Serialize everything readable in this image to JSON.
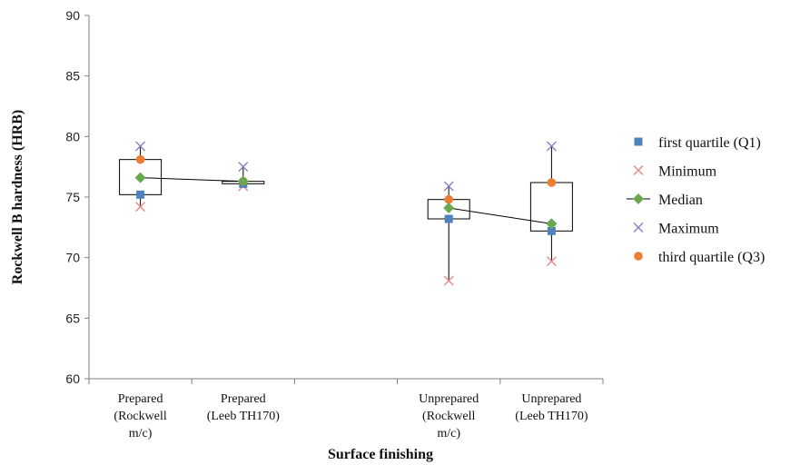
{
  "chart_data": {
    "type": "box",
    "xlabel": "Surface finishing",
    "ylabel": "Rockwell B hardness (HRB)",
    "ylim": [
      60,
      90
    ],
    "yticks": [
      60,
      65,
      70,
      75,
      80,
      85,
      90
    ],
    "grid": false,
    "legend_position": "right",
    "categories": [
      [
        "Prepared",
        "(Rockwell",
        "m/c)"
      ],
      [
        "Prepared",
        "(Leeb TH170)"
      ],
      [
        "Unprepared",
        "(Rockwell",
        "m/c)"
      ],
      [
        "Unprepared",
        "(Leeb TH170)"
      ]
    ],
    "category_positions": [
      0.5,
      1.5,
      3.5,
      4.5
    ],
    "x_range": [
      0,
      5
    ],
    "series": [
      {
        "name": "first quartile (Q1)",
        "marker": "square",
        "color": "#4f81bd",
        "values": [
          75.2,
          76.1,
          73.2,
          72.2
        ]
      },
      {
        "name": "Minimum",
        "marker": "x",
        "color": "#e88a86",
        "values": [
          74.2,
          75.9,
          68.1,
          69.7
        ]
      },
      {
        "name": "Median",
        "marker": "diamond",
        "color": "#6aa84f",
        "values": [
          76.6,
          76.3,
          74.1,
          72.8
        ]
      },
      {
        "name": "Maximum",
        "marker": "x",
        "color": "#8e7cc3",
        "values": [
          79.2,
          77.5,
          75.9,
          79.2
        ]
      },
      {
        "name": "third quartile (Q3)",
        "marker": "circle",
        "color": "#ed7d31",
        "values": [
          78.1,
          76.3,
          74.8,
          76.2
        ]
      }
    ]
  }
}
